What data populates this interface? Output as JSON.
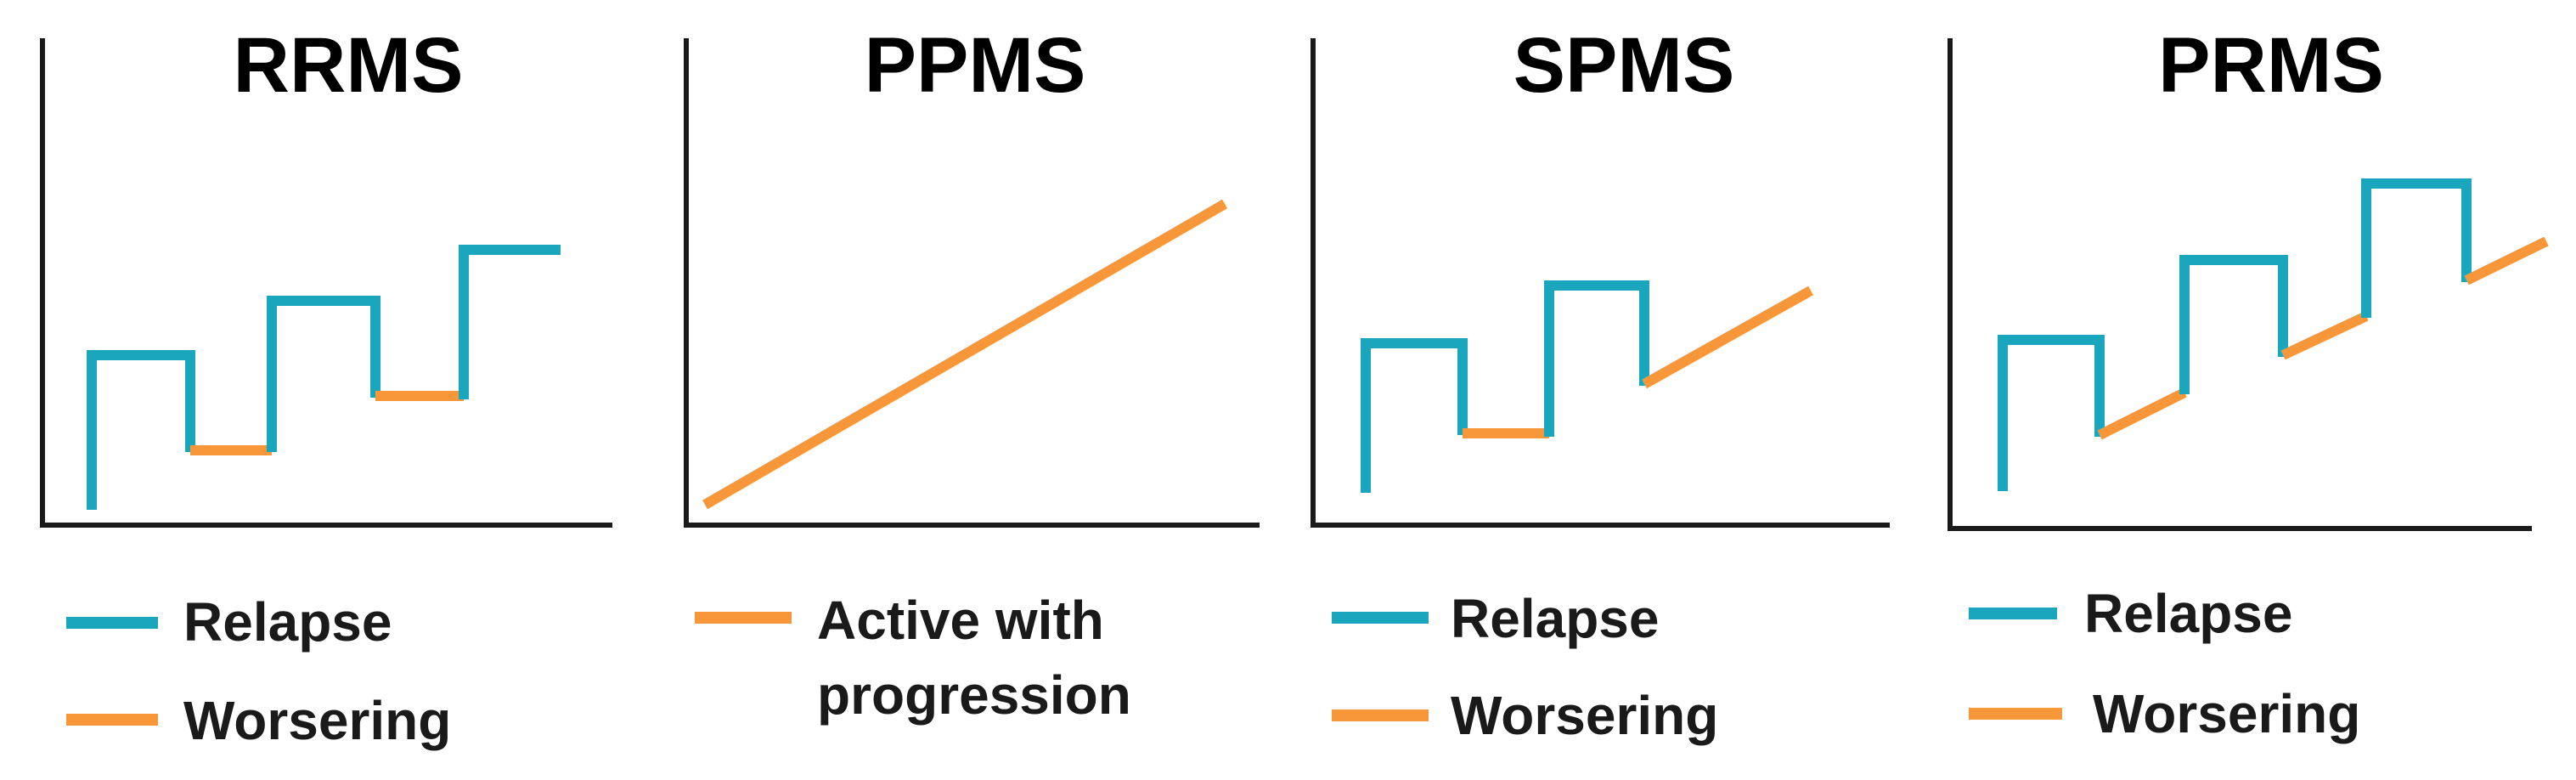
{
  "colors": {
    "relapse": "#1aa7bd",
    "worsening": "#f7973a",
    "axis": "#1a1a1a"
  },
  "panels": [
    {
      "id": "rrms",
      "title": "RRMS",
      "legend": [
        {
          "key": "relapse",
          "label": "Relapse"
        },
        {
          "key": "worsening",
          "label": "Worsering"
        }
      ]
    },
    {
      "id": "ppms",
      "title": "PPMS",
      "legend": [
        {
          "key": "worsening",
          "label": "Active with",
          "label_line2": "progression"
        }
      ]
    },
    {
      "id": "spms",
      "title": "SPMS",
      "legend": [
        {
          "key": "relapse",
          "label": "Relapse"
        },
        {
          "key": "worsening",
          "label": "Worsering"
        }
      ]
    },
    {
      "id": "prms",
      "title": "PRMS",
      "legend": [
        {
          "key": "relapse",
          "label": "Relapse"
        },
        {
          "key": "worsening",
          "label": "Worsering"
        }
      ]
    }
  ]
}
